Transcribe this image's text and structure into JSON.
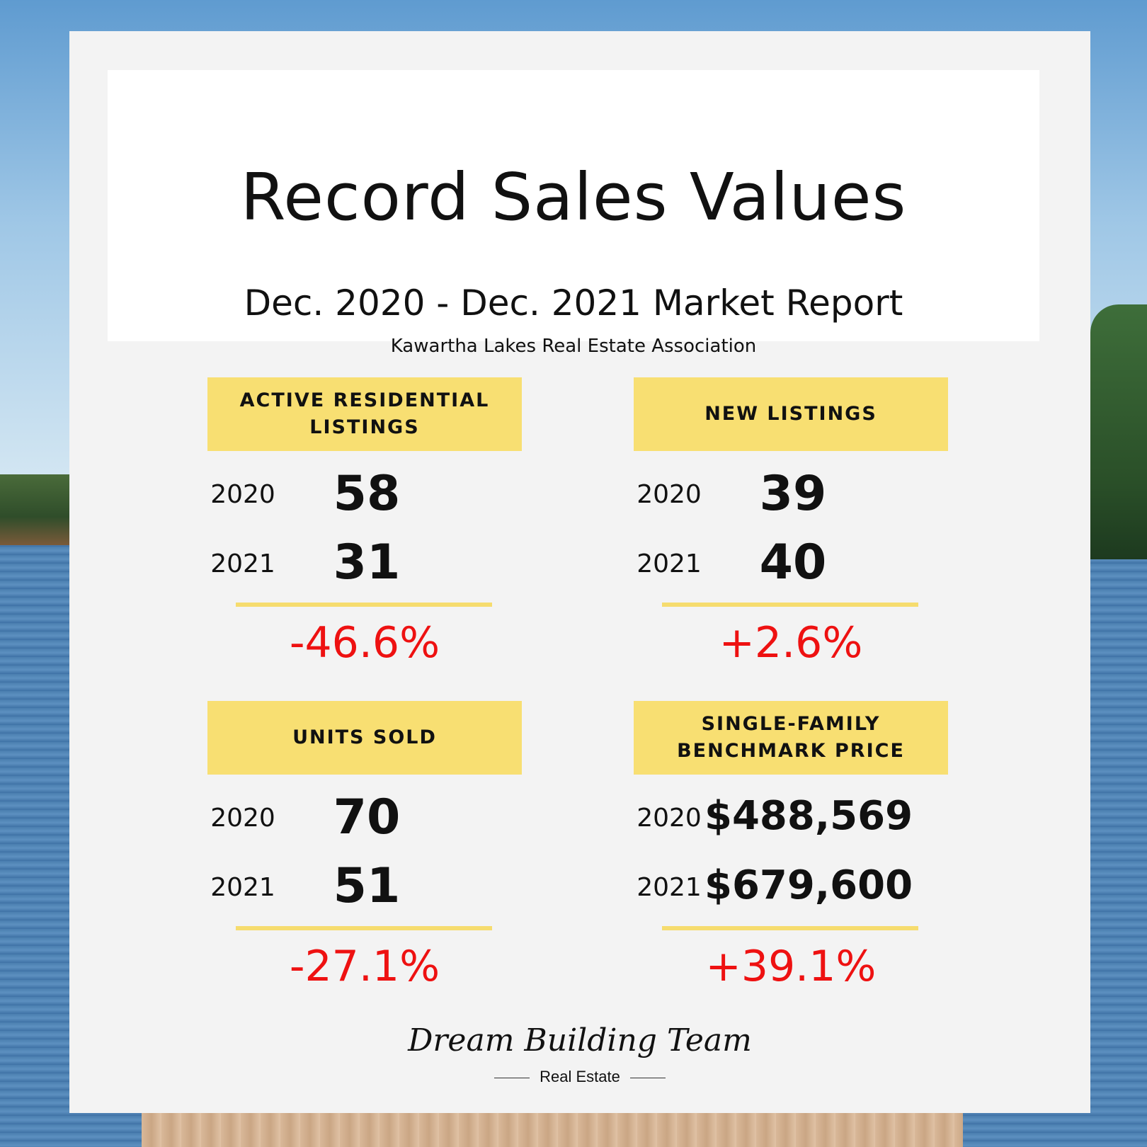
{
  "header": {
    "title": "Record Sales Values",
    "subtitle": "Dec. 2020 - Dec. 2021 Market Report",
    "organization": "Kawartha Lakes Real Estate Association"
  },
  "panels": [
    {
      "label_line1": "ACTIVE RESIDENTIAL",
      "label_line2": "LISTINGS",
      "year_a": "2020",
      "value_a": "58",
      "year_b": "2021",
      "value_b": "31",
      "change": "-46.6%"
    },
    {
      "label_line1": "NEW LISTINGS",
      "label_line2": "",
      "year_a": "2020",
      "value_a": "39",
      "year_b": "2021",
      "value_b": "40",
      "change": "+2.6%"
    },
    {
      "label_line1": "UNITS SOLD",
      "label_line2": "",
      "year_a": "2020",
      "value_a": "70",
      "year_b": "2021",
      "value_b": "51",
      "change": "-27.1%"
    },
    {
      "label_line1": "SINGLE-FAMILY",
      "label_line2": "BENCHMARK PRICE",
      "year_a": "2020",
      "value_a": "$488,569",
      "year_b": "2021",
      "value_b": "$679,600",
      "change": "+39.1%"
    }
  ],
  "branding": {
    "logo_text": "Dream Building Team",
    "logo_subtext": "Real Estate"
  },
  "colors": {
    "accent_yellow": "#f8df72",
    "change_red": "#ee1111",
    "card_bg": "#f3f3f3"
  }
}
